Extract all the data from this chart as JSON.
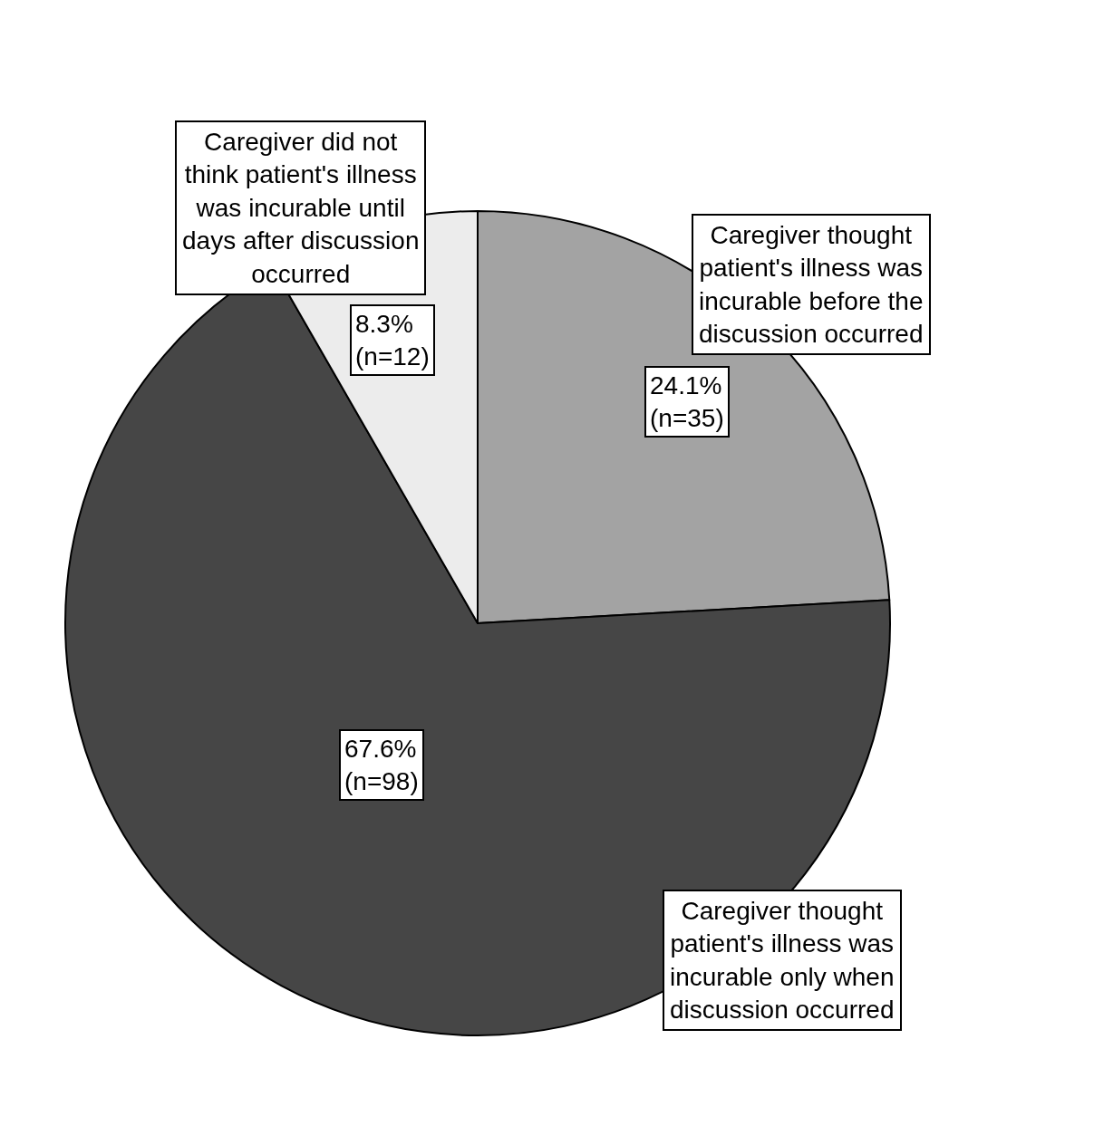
{
  "chart_data": {
    "type": "pie",
    "categories": [
      "Caregiver thought\npatient's illness was\nincurable before the\ndiscussion occurred",
      "Caregiver thought\npatient's illness was\nincurable only when\ndiscussion occurred",
      "Caregiver did not\nthink patient's illness\nwas incurable until\ndays after discussion\noccurred"
    ],
    "values": [
      24.1,
      67.6,
      8.3
    ],
    "value_labels": [
      "24.1%\n(n=35)",
      "67.6%\n(n=98)",
      "8.3%\n(n=12)"
    ],
    "colors": [
      "#a3a3a3",
      "#464646",
      "#ececec"
    ]
  }
}
